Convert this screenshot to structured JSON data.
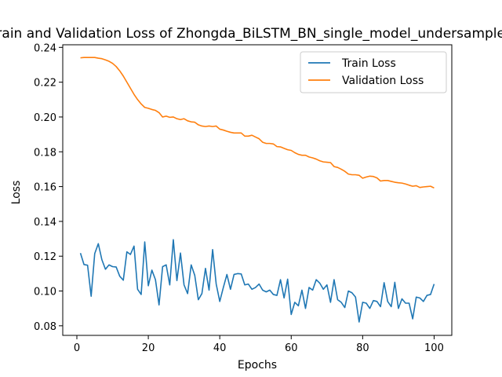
{
  "chart_data": {
    "type": "line",
    "title": "Train and Validation Loss of Zhongda_BiLSTM_BN_single_model_undersample_",
    "xlabel": "Epochs",
    "ylabel": "Loss",
    "xlim": [
      -3.95,
      104.95
    ],
    "ylim": [
      0.0745,
      0.2415
    ],
    "xticks": [
      0,
      20,
      40,
      60,
      80,
      100
    ],
    "yticks": [
      0.08,
      0.1,
      0.12,
      0.14,
      0.16,
      0.18,
      0.2,
      0.22,
      0.24
    ],
    "ytick_labels": [
      "0.08",
      "0.10",
      "0.12",
      "0.14",
      "0.16",
      "0.18",
      "0.20",
      "0.22",
      "0.24"
    ],
    "grid": false,
    "legend_position": "top-right",
    "x": [
      1,
      2,
      3,
      4,
      5,
      6,
      7,
      8,
      9,
      10,
      11,
      12,
      13,
      14,
      15,
      16,
      17,
      18,
      19,
      20,
      21,
      22,
      23,
      24,
      25,
      26,
      27,
      28,
      29,
      30,
      31,
      32,
      33,
      34,
      35,
      36,
      37,
      38,
      39,
      40,
      41,
      42,
      43,
      44,
      45,
      46,
      47,
      48,
      49,
      50,
      51,
      52,
      53,
      54,
      55,
      56,
      57,
      58,
      59,
      60,
      61,
      62,
      63,
      64,
      65,
      66,
      67,
      68,
      69,
      70,
      71,
      72,
      73,
      74,
      75,
      76,
      77,
      78,
      79,
      80,
      81,
      82,
      83,
      84,
      85,
      86,
      87,
      88,
      89,
      90,
      91,
      92,
      93,
      94,
      95,
      96,
      97,
      98,
      99,
      100
    ],
    "series": [
      {
        "name": "Train Loss",
        "color": "#1f77b4",
        "values": [
          0.1218,
          0.1152,
          0.1148,
          0.097,
          0.1215,
          0.1272,
          0.118,
          0.1125,
          0.115,
          0.114,
          0.1138,
          0.1085,
          0.1062,
          0.1225,
          0.121,
          0.1258,
          0.101,
          0.098,
          0.1282,
          0.103,
          0.112,
          0.1065,
          0.092,
          0.114,
          0.115,
          0.1035,
          0.1295,
          0.106,
          0.1218,
          0.1035,
          0.0985,
          0.115,
          0.109,
          0.095,
          0.0985,
          0.113,
          0.1005,
          0.1238,
          0.104,
          0.094,
          0.102,
          0.1095,
          0.101,
          0.1095,
          0.11,
          0.1098,
          0.1035,
          0.104,
          0.101,
          0.102,
          0.104,
          0.1005,
          0.0995,
          0.1005,
          0.098,
          0.0975,
          0.1065,
          0.096,
          0.1068,
          0.0865,
          0.0935,
          0.0915,
          0.1005,
          0.09,
          0.102,
          0.1005,
          0.1065,
          0.1045,
          0.101,
          0.1035,
          0.0935,
          0.1065,
          0.095,
          0.0935,
          0.0905,
          0.1,
          0.099,
          0.0965,
          0.0822,
          0.0935,
          0.093,
          0.09,
          0.0945,
          0.094,
          0.091,
          0.1048,
          0.094,
          0.091,
          0.105,
          0.09,
          0.0955,
          0.093,
          0.093,
          0.084,
          0.0965,
          0.096,
          0.094,
          0.0975,
          0.098,
          0.104
        ]
      },
      {
        "name": "Validation Loss",
        "color": "#ff7f0e",
        "values": [
          0.234,
          0.2342,
          0.2342,
          0.2342,
          0.2342,
          0.2338,
          0.2335,
          0.2328,
          0.232,
          0.2308,
          0.229,
          0.2265,
          0.2235,
          0.22,
          0.2165,
          0.213,
          0.21,
          0.2075,
          0.2055,
          0.205,
          0.2043,
          0.2038,
          0.2025,
          0.2,
          0.2005,
          0.1998,
          0.2,
          0.199,
          0.1985,
          0.199,
          0.1978,
          0.1972,
          0.197,
          0.1955,
          0.1948,
          0.1945,
          0.1948,
          0.1945,
          0.1948,
          0.193,
          0.1925,
          0.1918,
          0.1912,
          0.1908,
          0.1908,
          0.1908,
          0.189,
          0.189,
          0.1895,
          0.1885,
          0.1875,
          0.1855,
          0.1848,
          0.1848,
          0.1845,
          0.183,
          0.1828,
          0.182,
          0.1812,
          0.1808,
          0.1795,
          0.1785,
          0.178,
          0.178,
          0.177,
          0.1765,
          0.1758,
          0.1748,
          0.1742,
          0.174,
          0.1738,
          0.1715,
          0.171,
          0.17,
          0.1688,
          0.1672,
          0.1668,
          0.1668,
          0.1665,
          0.1648,
          0.1655,
          0.166,
          0.1658,
          0.165,
          0.1632,
          0.1635,
          0.1635,
          0.163,
          0.1625,
          0.1622,
          0.162,
          0.1615,
          0.1608,
          0.1602,
          0.1605,
          0.1595,
          0.1598,
          0.16,
          0.1602,
          0.1592
        ]
      }
    ]
  }
}
